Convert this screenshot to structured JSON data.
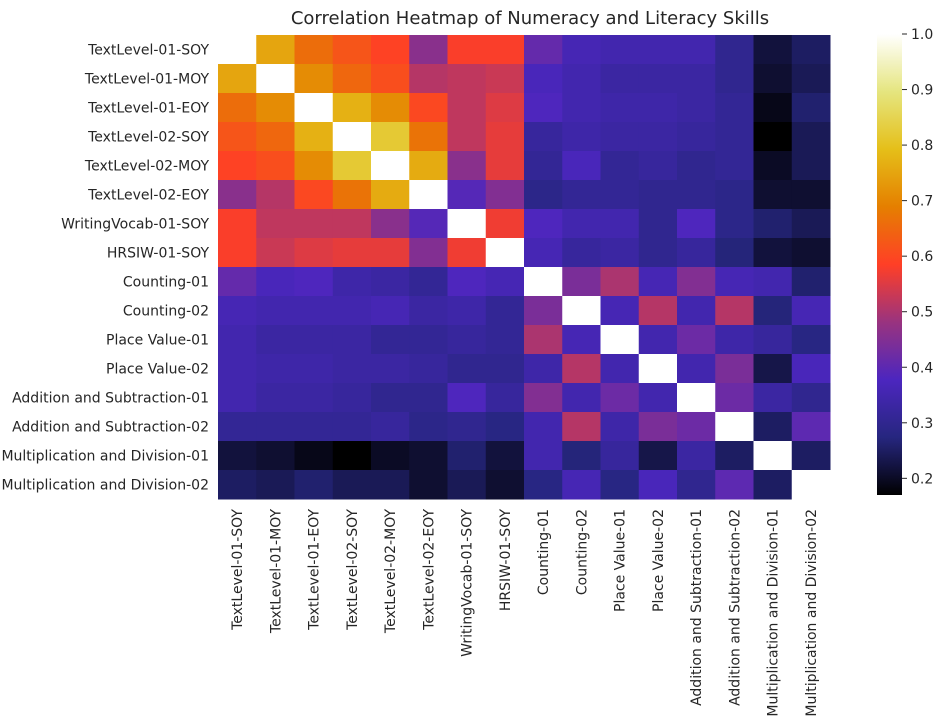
{
  "chart_data": {
    "type": "heatmap",
    "title": "Correlation Heatmap of Numeracy and Literacy Skills",
    "xlabel": "",
    "ylabel": "",
    "rows": [
      "TextLevel-01-SOY",
      "TextLevel-01-MOY",
      "TextLevel-01-EOY",
      "TextLevel-02-SOY",
      "TextLevel-02-MOY",
      "TextLevel-02-EOY",
      "WritingVocab-01-SOY",
      "HRSIW-01-SOY",
      "Counting-01",
      "Counting-02",
      "Place Value-01",
      "Place Value-02",
      "Addition and Subtraction-01",
      "Addition and Subtraction-02",
      "Multiplication and Division-01",
      "Multiplication and Division-02"
    ],
    "columns": [
      "TextLevel-01-SOY",
      "TextLevel-01-MOY",
      "TextLevel-01-EOY",
      "TextLevel-02-SOY",
      "TextLevel-02-MOY",
      "TextLevel-02-EOY",
      "WritingVocab-01-SOY",
      "HRSIW-01-SOY",
      "Counting-01",
      "Counting-02",
      "Place Value-01",
      "Place Value-02",
      "Addition and Subtraction-01",
      "Addition and Subtraction-02",
      "Multiplication and Division-01",
      "Multiplication and Division-02"
    ],
    "values": [
      [
        1.0,
        0.75,
        0.66,
        0.62,
        0.59,
        0.46,
        0.58,
        0.58,
        0.41,
        0.36,
        0.35,
        0.35,
        0.35,
        0.3,
        0.22,
        0.25
      ],
      [
        0.75,
        1.0,
        0.71,
        0.65,
        0.61,
        0.51,
        0.52,
        0.53,
        0.37,
        0.35,
        0.33,
        0.33,
        0.33,
        0.3,
        0.21,
        0.24
      ],
      [
        0.66,
        0.71,
        1.0,
        0.77,
        0.71,
        0.6,
        0.52,
        0.55,
        0.38,
        0.35,
        0.34,
        0.34,
        0.33,
        0.31,
        0.19,
        0.26
      ],
      [
        0.62,
        0.65,
        0.77,
        1.0,
        0.82,
        0.67,
        0.52,
        0.56,
        0.32,
        0.34,
        0.33,
        0.33,
        0.32,
        0.31,
        0.17,
        0.24
      ],
      [
        0.59,
        0.61,
        0.71,
        0.82,
        1.0,
        0.76,
        0.46,
        0.56,
        0.31,
        0.37,
        0.31,
        0.32,
        0.3,
        0.31,
        0.2,
        0.24
      ],
      [
        0.46,
        0.51,
        0.6,
        0.67,
        0.76,
        1.0,
        0.39,
        0.45,
        0.29,
        0.31,
        0.31,
        0.3,
        0.3,
        0.29,
        0.21,
        0.21
      ],
      [
        0.58,
        0.52,
        0.52,
        0.52,
        0.46,
        0.39,
        1.0,
        0.57,
        0.38,
        0.35,
        0.35,
        0.3,
        0.38,
        0.29,
        0.26,
        0.24
      ],
      [
        0.58,
        0.53,
        0.55,
        0.56,
        0.56,
        0.45,
        0.57,
        1.0,
        0.36,
        0.32,
        0.33,
        0.3,
        0.32,
        0.27,
        0.22,
        0.21
      ],
      [
        0.41,
        0.37,
        0.38,
        0.34,
        0.33,
        0.31,
        0.38,
        0.36,
        1.0,
        0.44,
        0.5,
        0.36,
        0.45,
        0.36,
        0.35,
        0.26
      ],
      [
        0.36,
        0.35,
        0.35,
        0.35,
        0.36,
        0.33,
        0.34,
        0.31,
        0.44,
        1.0,
        0.36,
        0.51,
        0.35,
        0.51,
        0.27,
        0.36
      ],
      [
        0.35,
        0.33,
        0.33,
        0.33,
        0.31,
        0.31,
        0.32,
        0.31,
        0.5,
        0.36,
        1.0,
        0.35,
        0.42,
        0.34,
        0.32,
        0.28
      ],
      [
        0.35,
        0.34,
        0.34,
        0.33,
        0.33,
        0.32,
        0.3,
        0.3,
        0.34,
        0.51,
        0.35,
        1.0,
        0.35,
        0.44,
        0.23,
        0.37
      ],
      [
        0.35,
        0.33,
        0.33,
        0.32,
        0.3,
        0.3,
        0.38,
        0.32,
        0.45,
        0.35,
        0.42,
        0.35,
        1.0,
        0.42,
        0.33,
        0.3
      ],
      [
        0.31,
        0.31,
        0.31,
        0.31,
        0.32,
        0.29,
        0.3,
        0.28,
        0.35,
        0.51,
        0.34,
        0.44,
        0.42,
        1.0,
        0.25,
        0.4
      ],
      [
        0.22,
        0.21,
        0.19,
        0.17,
        0.2,
        0.21,
        0.26,
        0.22,
        0.35,
        0.27,
        0.32,
        0.23,
        0.33,
        0.25,
        1.0,
        0.25
      ],
      [
        0.25,
        0.24,
        0.26,
        0.24,
        0.24,
        0.21,
        0.24,
        0.21,
        0.28,
        0.36,
        0.28,
        0.37,
        0.3,
        0.4,
        0.25,
        1.0
      ]
    ],
    "colorbar": {
      "min": 0.17,
      "max": 1.0,
      "ticks": [
        "0.2",
        "0.3",
        "0.4",
        "0.5",
        "0.6",
        "0.7",
        "0.8",
        "0.9",
        "1.0"
      ],
      "colormap": "CMRmap"
    },
    "grid": false,
    "legend": "colorbar-right"
  }
}
